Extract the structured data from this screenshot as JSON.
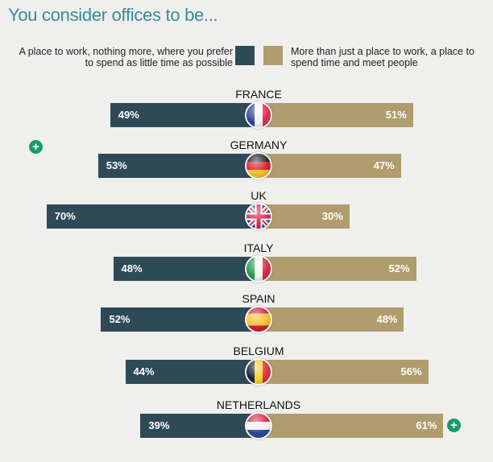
{
  "title": "You consider offices to be...",
  "legend": {
    "left_label": "A place to work, nothing more, where you prefer to spend as little time as possible",
    "right_label": "More than just a place to work, a place to spend time and meet people",
    "left_color": "#2f4a57",
    "right_color": "#b09c6d"
  },
  "icons": {
    "expand_left": "plus-circle-icon",
    "expand_right": "plus-circle-icon",
    "plus_glyph": "+"
  },
  "chart_data": {
    "type": "bar",
    "orientation": "horizontal-diverging",
    "title": "You consider offices to be...",
    "categories": [
      "FRANCE",
      "GERMANY",
      "UK",
      "ITALY",
      "SPAIN",
      "BELGIUM",
      "NETHERLANDS"
    ],
    "series": [
      {
        "name": "A place to work, nothing more, where you prefer to spend as little time as possible",
        "color": "#2f4a57",
        "values": [
          49,
          53,
          70,
          48,
          52,
          44,
          39
        ]
      },
      {
        "name": "More than just a place to work, a place to spend time and meet people",
        "color": "#b09c6d",
        "values": [
          51,
          47,
          30,
          52,
          48,
          56,
          61
        ]
      }
    ],
    "value_suffix": "%",
    "legend_position": "top",
    "grid": false
  },
  "rows": [
    {
      "country": "FRANCE",
      "left": "49%",
      "right": "51%",
      "flag": "france"
    },
    {
      "country": "GERMANY",
      "left": "53%",
      "right": "47%",
      "flag": "germany"
    },
    {
      "country": "UK",
      "left": "70%",
      "right": "30%",
      "flag": "uk"
    },
    {
      "country": "ITALY",
      "left": "48%",
      "right": "52%",
      "flag": "italy"
    },
    {
      "country": "SPAIN",
      "left": "52%",
      "right": "48%",
      "flag": "spain"
    },
    {
      "country": "BELGIUM",
      "left": "44%",
      "right": "56%",
      "flag": "belgium"
    },
    {
      "country": "NETHERLANDS",
      "left": "39%",
      "right": "61%",
      "flag": "netherlands"
    }
  ]
}
